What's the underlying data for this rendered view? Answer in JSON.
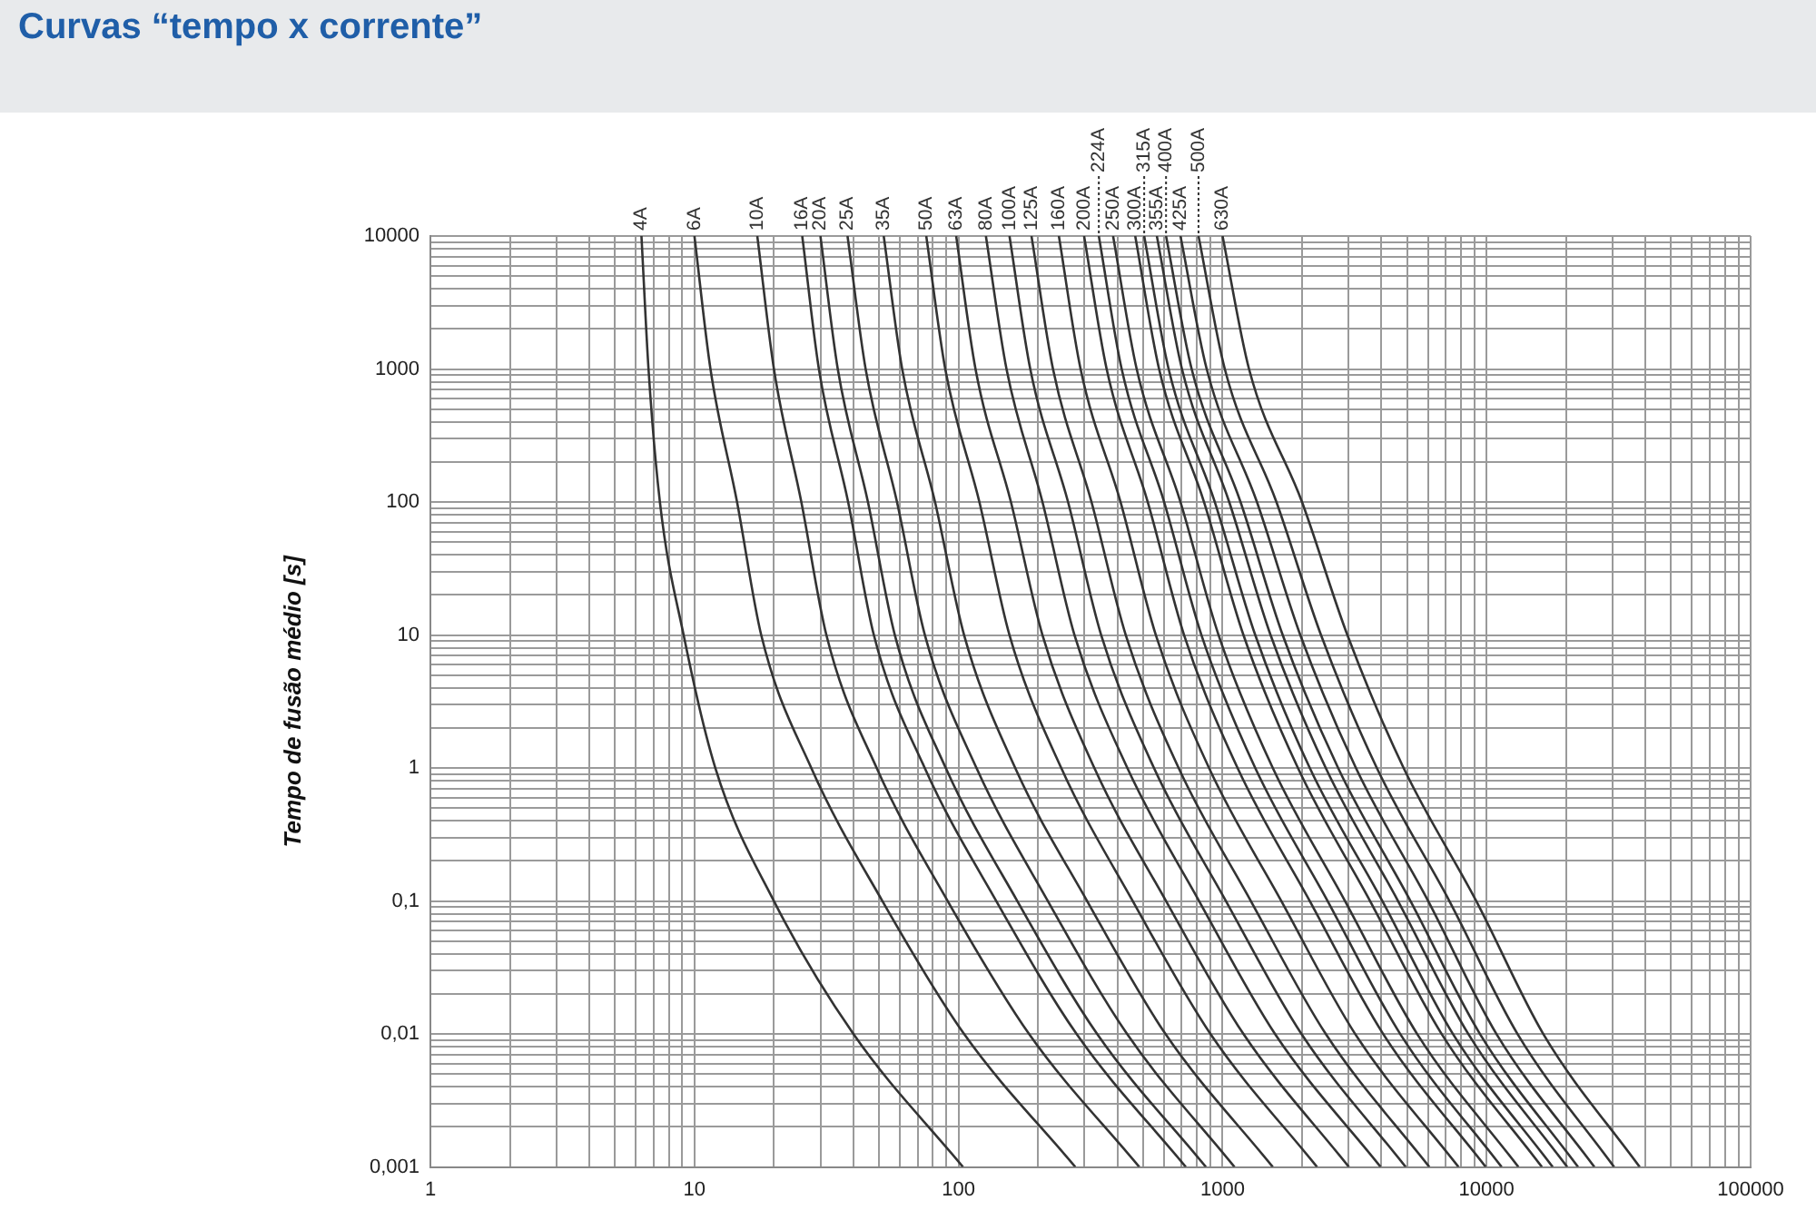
{
  "chart_data": {
    "type": "line",
    "title": "Curvas “tempo x corrente”",
    "ylabel": "Tempo de fusão médio [s]",
    "log": "xy",
    "grid": true,
    "marker": "none",
    "line_style": "solid",
    "xlim": [
      1,
      100000
    ],
    "xticks": [
      1,
      {
        "value": 2,
        "label": null
      },
      {
        "value": 3,
        "label": null
      },
      {
        "value": 4,
        "label": null
      },
      {
        "value": 5,
        "label": null
      },
      {
        "value": 6,
        "label": null
      },
      {
        "value": 7,
        "label": null
      },
      {
        "value": 8,
        "label": null
      },
      {
        "value": 9,
        "label": null
      },
      10,
      {
        "value": 20,
        "label": null
      },
      {
        "value": 30,
        "label": null
      },
      {
        "value": 40,
        "label": null
      },
      {
        "value": 50,
        "label": null
      },
      {
        "value": 60,
        "label": null
      },
      {
        "value": 70,
        "label": null
      },
      {
        "value": 80,
        "label": null
      },
      {
        "value": 90,
        "label": null
      },
      100,
      {
        "value": 200,
        "label": null
      },
      {
        "value": 300,
        "label": null
      },
      {
        "value": 400,
        "label": null
      },
      {
        "value": 500,
        "label": null
      },
      {
        "value": 600,
        "label": null
      },
      {
        "value": 700,
        "label": null
      },
      {
        "value": 800,
        "label": null
      },
      {
        "value": 900,
        "label": null
      },
      1000,
      {
        "value": 2000,
        "label": null
      },
      {
        "value": 3000,
        "label": null
      },
      {
        "value": 4000,
        "label": null
      },
      {
        "value": 5000,
        "label": null
      },
      {
        "value": 6000,
        "label": null
      },
      {
        "value": 7000,
        "label": null
      },
      {
        "value": 8000,
        "label": null
      },
      {
        "value": 9000,
        "label": null
      },
      10000,
      {
        "value": 20000,
        "label": null
      },
      {
        "value": 30000,
        "label": null
      },
      {
        "value": 40000,
        "label": null
      },
      {
        "value": 50000,
        "label": null
      },
      {
        "value": 60000,
        "label": null
      },
      {
        "value": 70000,
        "label": null
      },
      {
        "value": 80000,
        "label": null
      },
      {
        "value": 90000,
        "label": null
      },
      100000
    ],
    "ylim": [
      0.001,
      10000
    ],
    "yticks": [
      {
        "value": 0.001,
        "label": "0,001"
      },
      {
        "value": 0.002,
        "label": null
      },
      {
        "value": 0.003,
        "label": null
      },
      {
        "value": 0.004,
        "label": null
      },
      {
        "value": 0.005,
        "label": null
      },
      {
        "value": 0.006,
        "label": null
      },
      {
        "value": 0.007,
        "label": null
      },
      {
        "value": 0.008,
        "label": null
      },
      {
        "value": 0.009,
        "label": null
      },
      {
        "value": 0.01,
        "label": "0,01"
      },
      {
        "value": 0.02,
        "label": null
      },
      {
        "value": 0.03,
        "label": null
      },
      {
        "value": 0.04,
        "label": null
      },
      {
        "value": 0.05,
        "label": null
      },
      {
        "value": 0.06,
        "label": null
      },
      {
        "value": 0.07,
        "label": null
      },
      {
        "value": 0.08,
        "label": null
      },
      {
        "value": 0.09,
        "label": null
      },
      {
        "value": 0.1,
        "label": "0,1"
      },
      {
        "value": 0.2,
        "label": null
      },
      {
        "value": 0.3,
        "label": null
      },
      {
        "value": 0.4,
        "label": null
      },
      {
        "value": 0.5,
        "label": null
      },
      {
        "value": 0.6,
        "label": null
      },
      {
        "value": 0.7,
        "label": null
      },
      {
        "value": 0.8,
        "label": null
      },
      {
        "value": 0.9,
        "label": null
      },
      1,
      {
        "value": 2,
        "label": null
      },
      {
        "value": 3,
        "label": null
      },
      {
        "value": 4,
        "label": null
      },
      {
        "value": 5,
        "label": null
      },
      {
        "value": 6,
        "label": null
      },
      {
        "value": 7,
        "label": null
      },
      {
        "value": 8,
        "label": null
      },
      {
        "value": 9,
        "label": null
      },
      10,
      {
        "value": 20,
        "label": null
      },
      {
        "value": 30,
        "label": null
      },
      {
        "value": 40,
        "label": null
      },
      {
        "value": 50,
        "label": null
      },
      {
        "value": 60,
        "label": null
      },
      {
        "value": 70,
        "label": null
      },
      {
        "value": 80,
        "label": null
      },
      {
        "value": 90,
        "label": null
      },
      100,
      {
        "value": 200,
        "label": null
      },
      {
        "value": 300,
        "label": null
      },
      {
        "value": 400,
        "label": null
      },
      {
        "value": 500,
        "label": null
      },
      {
        "value": 600,
        "label": null
      },
      {
        "value": 700,
        "label": null
      },
      {
        "value": 800,
        "label": null
      },
      {
        "value": 900,
        "label": null
      },
      1000,
      {
        "value": 2000,
        "label": null
      },
      {
        "value": 3000,
        "label": null
      },
      {
        "value": 4000,
        "label": null
      },
      {
        "value": 5000,
        "label": null
      },
      {
        "value": 6000,
        "label": null
      },
      {
        "value": 7000,
        "label": null
      },
      {
        "value": 8000,
        "label": null
      },
      {
        "value": 9000,
        "label": null
      },
      10000
    ],
    "series": [
      {
        "name": "4A",
        "color": "#333333",
        "x": [
          6.3,
          6.7,
          7.4,
          9.1,
          12,
          20,
          40,
          104
        ],
        "values": [
          10000,
          1000,
          100,
          10,
          1,
          0.1,
          0.01,
          0.001
        ]
      },
      {
        "name": "6A",
        "color": "#333333",
        "x": [
          10,
          11.5,
          14.5,
          17.9,
          27.7,
          51.5,
          105,
          277
        ],
        "values": [
          10000,
          1000,
          100,
          10,
          1,
          0.1,
          0.01,
          0.001
        ]
      },
      {
        "name": "10A",
        "color": "#333333",
        "x": [
          17.3,
          20,
          25.4,
          31.6,
          49,
          91,
          185,
          484
        ],
        "values": [
          10000,
          1000,
          100,
          10,
          1,
          0.1,
          0.01,
          0.001
        ]
      },
      {
        "name": "16A",
        "color": "#333333",
        "x": [
          25.6,
          29.6,
          38.2,
          47.8,
          74.5,
          139,
          280,
          726
        ],
        "values": [
          10000,
          1000,
          100,
          10,
          1,
          0.1,
          0.01,
          0.001
        ]
      },
      {
        "name": "20A",
        "color": "#333333",
        "x": [
          30,
          34.9,
          45.4,
          57.4,
          89.5,
          167,
          335,
          865
        ],
        "values": [
          10000,
          1000,
          100,
          10,
          1,
          0.1,
          0.01,
          0.001
        ]
      },
      {
        "name": "25A",
        "color": "#333333",
        "x": [
          38,
          44.5,
          58.5,
          74.6,
          117,
          218,
          435,
          1110
        ],
        "values": [
          10000,
          1000,
          100,
          10,
          1,
          0.1,
          0.01,
          0.001
        ]
      },
      {
        "name": "35A",
        "color": "#333333",
        "x": [
          52.1,
          61.2,
          81.5,
          105,
          164,
          307,
          608,
          1550
        ],
        "values": [
          10000,
          1000,
          100,
          10,
          1,
          0.1,
          0.01,
          0.001
        ]
      },
      {
        "name": "50A",
        "color": "#333333",
        "x": [
          75.5,
          89.1,
          120,
          156,
          245,
          457,
          900,
          2280
        ],
        "values": [
          10000,
          1000,
          100,
          10,
          1,
          0.1,
          0.01,
          0.001
        ]
      },
      {
        "name": "63A",
        "color": "#333333",
        "x": [
          98,
          116,
          158,
          208,
          327,
          611,
          1200,
          3010
        ],
        "values": [
          10000,
          1000,
          100,
          10,
          1,
          0.1,
          0.01,
          0.001
        ]
      },
      {
        "name": "80A",
        "color": "#333333",
        "x": [
          127,
          152,
          208,
          275,
          436,
          815,
          1580,
          3970
        ],
        "values": [
          10000,
          1000,
          100,
          10,
          1,
          0.1,
          0.01,
          0.001
        ]
      },
      {
        "name": "100A",
        "color": "#333333",
        "x": [
          156,
          187,
          260,
          347,
          550,
          1030,
          1990,
          4940
        ],
        "values": [
          10000,
          1000,
          100,
          10,
          1,
          0.1,
          0.01,
          0.001
        ]
      },
      {
        "name": "125A",
        "color": "#333333",
        "x": [
          189,
          228,
          319,
          430,
          682,
          1280,
          2460,
          6070
        ],
        "values": [
          10000,
          1000,
          100,
          10,
          1,
          0.1,
          0.01,
          0.001
        ]
      },
      {
        "name": "160A",
        "color": "#333333",
        "x": [
          240,
          290,
          411,
          559,
          889,
          1670,
          3180,
          7830
        ],
        "values": [
          10000,
          1000,
          100,
          10,
          1,
          0.1,
          0.01,
          0.001
        ]
      },
      {
        "name": "200A",
        "color": "#333333",
        "x": [
          299,
          364,
          521,
          715,
          1140,
          2140,
          4060,
          9930
        ],
        "values": [
          10000,
          1000,
          100,
          10,
          1,
          0.1,
          0.01,
          0.001
        ]
      },
      {
        "name": "224A",
        "color": "#333333",
        "x": [
          340,
          415,
          601,
          832,
          1330,
          2500,
          4710,
          11400
        ],
        "values": [
          10000,
          1000,
          100,
          10,
          1,
          0.1,
          0.01,
          0.001
        ]
      },
      {
        "name": "250A",
        "color": "#333333",
        "x": [
          385,
          473,
          693,
          966,
          1550,
          2910,
          5460,
          13200
        ],
        "values": [
          10000,
          1000,
          100,
          10,
          1,
          0.1,
          0.01,
          0.001
        ]
      },
      {
        "name": "300A",
        "color": "#333333",
        "x": [
          467,
          575,
          851,
          1200,
          1930,
          3620,
          6760,
          16200
        ],
        "values": [
          10000,
          1000,
          100,
          10,
          1,
          0.1,
          0.01,
          0.001
        ]
      },
      {
        "name": "315A",
        "color": "#333333",
        "x": [
          505,
          625,
          935,
          1330,
          2140,
          4030,
          7460,
          17800
        ],
        "values": [
          10000,
          1000,
          100,
          10,
          1,
          0.1,
          0.01,
          0.001
        ]
      },
      {
        "name": "355A",
        "color": "#333333",
        "x": [
          564,
          702,
          1060,
          1520,
          2460,
          4620,
          8530,
          20200
        ],
        "values": [
          10000,
          1000,
          100,
          10,
          1,
          0.1,
          0.01,
          0.001
        ]
      },
      {
        "name": "400A",
        "color": "#333333",
        "x": [
          611,
          764,
          1170,
          1690,
          2740,
          5150,
          9440,
          22200
        ],
        "values": [
          10000,
          1000,
          100,
          10,
          1,
          0.1,
          0.01,
          0.001
        ]
      },
      {
        "name": "425A",
        "color": "#333333",
        "x": [
          693,
          871,
          1350,
          1970,
          3200,
          6010,
          10900,
          25600
        ],
        "values": [
          10000,
          1000,
          100,
          10,
          1,
          0.1,
          0.01,
          0.001
        ]
      },
      {
        "name": "500A",
        "color": "#333333",
        "x": [
          811,
          1020,
          1600,
          2360,
          3840,
          7230,
          13100,
          30400
        ],
        "values": [
          10000,
          1000,
          100,
          10,
          1,
          0.1,
          0.01,
          0.001
        ]
      },
      {
        "name": "630A",
        "color": "#333333",
        "x": [
          1000,
          1260,
          2000,
          2970,
          4850,
          9140,
          16400,
          38000
        ],
        "values": [
          10000,
          1000,
          100,
          10,
          1,
          0.1,
          0.01,
          0.001
        ]
      }
    ]
  }
}
